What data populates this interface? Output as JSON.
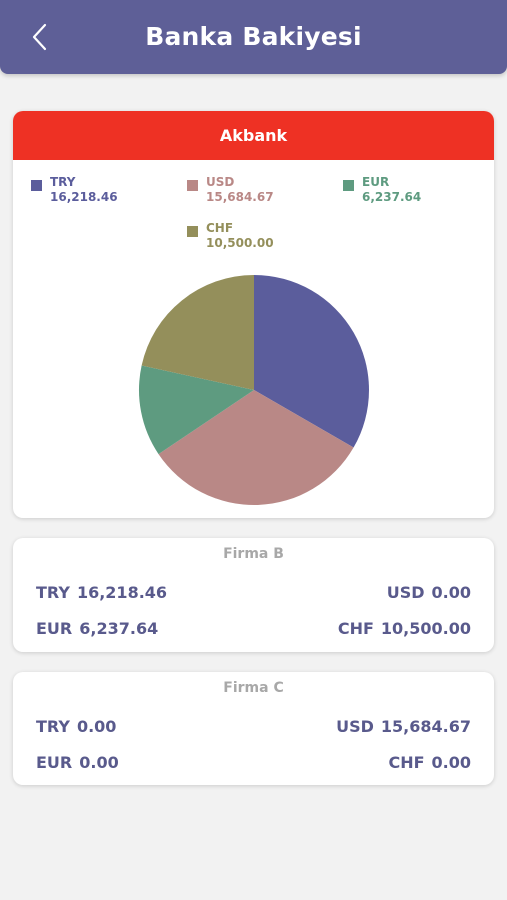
{
  "header": {
    "title": "Banka Bakiyesi",
    "back_icon": "chevron-left-icon"
  },
  "colors": {
    "header": "#5e5f97",
    "akbank": "#ee3124",
    "TRY": "#5b5d9c",
    "USD": "#b98886",
    "EUR": "#5e9b80",
    "CHF": "#948f5b"
  },
  "akbank": {
    "name": "Akbank",
    "legend": [
      {
        "code": "TRY",
        "amount": "16,218.46"
      },
      {
        "code": "USD",
        "amount": "15,684.67"
      },
      {
        "code": "EUR",
        "amount": "6,237.64"
      },
      {
        "code": "CHF",
        "amount": "10,500.00"
      }
    ]
  },
  "chart_data": {
    "type": "pie",
    "categories": [
      "TRY",
      "USD",
      "EUR",
      "CHF"
    ],
    "values": [
      16218.46,
      15684.67,
      6237.64,
      10500.0
    ],
    "colors": [
      "#5b5d9c",
      "#b98886",
      "#5e9b80",
      "#948f5b"
    ],
    "title": "Akbank",
    "legend": "top"
  },
  "firmas": [
    {
      "name": "Firma B",
      "balances": [
        {
          "code": "TRY",
          "amount": "16,218.46"
        },
        {
          "code": "USD",
          "amount": "0.00"
        },
        {
          "code": "EUR",
          "amount": "6,237.64"
        },
        {
          "code": "CHF",
          "amount": "10,500.00"
        }
      ]
    },
    {
      "name": "Firma C",
      "balances": [
        {
          "code": "TRY",
          "amount": "0.00"
        },
        {
          "code": "USD",
          "amount": "15,684.67"
        },
        {
          "code": "EUR",
          "amount": "0.00"
        },
        {
          "code": "CHF",
          "amount": "0.00"
        }
      ]
    }
  ]
}
